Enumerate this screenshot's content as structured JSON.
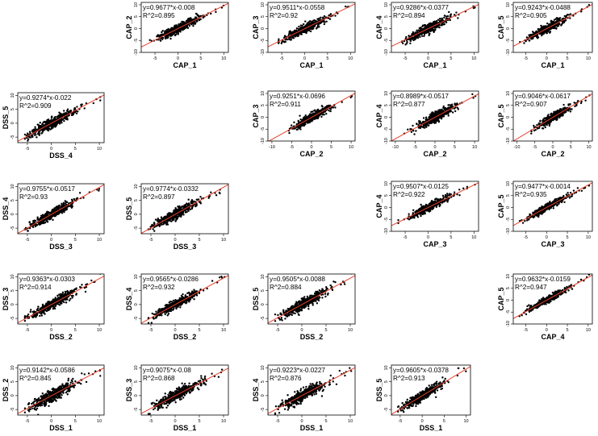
{
  "figure": {
    "description_free": true,
    "x_ticks": [
      -5,
      0,
      5,
      10
    ],
    "y_ticks": [
      -5,
      0,
      5,
      10
    ],
    "point_color": "#000000",
    "fit_color": "#e8402c"
  },
  "chart_data": [
    {
      "id": "p1",
      "type": "scatter",
      "xlabel": "CAP_1",
      "ylabel": "CAP_2",
      "equation": "y=0.9677*x-0.008",
      "r2_label": "R^2=0.895",
      "slope": 0.9677,
      "intercept": -0.008,
      "r2": 0.895,
      "xlim": [
        -8,
        11
      ],
      "ylim": [
        -10,
        11
      ],
      "xticks": [
        -5,
        0,
        5,
        10
      ],
      "yticks": [
        -10,
        -5,
        0,
        5,
        10
      ],
      "spread": 0.9
    },
    {
      "id": "p2",
      "type": "scatter",
      "xlabel": "CAP_1",
      "ylabel": "CAP_3",
      "equation": "y=0.9511*x-0.0558",
      "r2_label": "R^2=0.92",
      "slope": 0.9511,
      "intercept": -0.0558,
      "r2": 0.92,
      "xlim": [
        -8,
        11
      ],
      "ylim": [
        -10,
        11
      ],
      "xticks": [
        -5,
        0,
        5,
        10
      ],
      "yticks": [
        -10,
        -5,
        0,
        5,
        10
      ],
      "spread": 0.8
    },
    {
      "id": "p3",
      "type": "scatter",
      "xlabel": "CAP_1",
      "ylabel": "CAP_4",
      "equation": "y=0.9286*x-0.0377",
      "r2_label": "R^2=0.894",
      "slope": 0.9286,
      "intercept": -0.0377,
      "r2": 0.894,
      "xlim": [
        -8,
        11
      ],
      "ylim": [
        -10,
        11
      ],
      "xticks": [
        -5,
        0,
        5,
        10
      ],
      "yticks": [
        -10,
        -5,
        0,
        5,
        10
      ],
      "spread": 0.9
    },
    {
      "id": "p4",
      "type": "scatter",
      "xlabel": "CAP_1",
      "ylabel": "CAP_5",
      "equation": "y=0.9243*x-0.0488",
      "r2_label": "R^2=0.905",
      "slope": 0.9243,
      "intercept": -0.0488,
      "r2": 0.905,
      "xlim": [
        -8,
        11
      ],
      "ylim": [
        -10,
        11
      ],
      "xticks": [
        -5,
        0,
        5,
        10
      ],
      "yticks": [
        -10,
        -5,
        0,
        5,
        10
      ],
      "spread": 0.85
    },
    {
      "id": "p5",
      "type": "scatter",
      "xlabel": "DSS_4",
      "ylabel": "DSS_5",
      "equation": "y=0.9274*x-0.022",
      "r2_label": "R^2=0.909",
      "slope": 0.9274,
      "intercept": -0.022,
      "r2": 0.909,
      "xlim": [
        -7,
        11
      ],
      "ylim": [
        -7,
        11
      ],
      "xticks": [
        -5,
        0,
        5,
        10
      ],
      "yticks": [
        -5,
        0,
        5,
        10
      ],
      "spread": 0.85
    },
    {
      "id": "p6",
      "type": "scatter",
      "xlabel": "CAP_2",
      "ylabel": "CAP_3",
      "equation": "y=0.9251*x-0.0696",
      "r2_label": "R^2=0.911",
      "slope": 0.9251,
      "intercept": -0.0696,
      "r2": 0.911,
      "xlim": [
        -11,
        11
      ],
      "ylim": [
        -10,
        11
      ],
      "xticks": [
        -10,
        -5,
        0,
        5,
        10
      ],
      "yticks": [
        -10,
        -5,
        0,
        5,
        10
      ],
      "spread": 0.85
    },
    {
      "id": "p7",
      "type": "scatter",
      "xlabel": "CAP_2",
      "ylabel": "CAP_4",
      "equation": "y=0.8989*x-0.0517",
      "r2_label": "R^2=0.877",
      "slope": 0.8989,
      "intercept": -0.0517,
      "r2": 0.877,
      "xlim": [
        -11,
        11
      ],
      "ylim": [
        -10,
        11
      ],
      "xticks": [
        -10,
        -5,
        0,
        5,
        10
      ],
      "yticks": [
        -10,
        -5,
        0,
        5,
        10
      ],
      "spread": 1.0
    },
    {
      "id": "p8",
      "type": "scatter",
      "xlabel": "CAP_2",
      "ylabel": "CAP_5",
      "equation": "y=0.9046*x-0.0617",
      "r2_label": "R^2=0.907",
      "slope": 0.9046,
      "intercept": -0.0617,
      "r2": 0.907,
      "xlim": [
        -11,
        11
      ],
      "ylim": [
        -10,
        11
      ],
      "xticks": [
        -10,
        -5,
        0,
        5,
        10
      ],
      "yticks": [
        -10,
        -5,
        0,
        5,
        10
      ],
      "spread": 0.85
    },
    {
      "id": "p9",
      "type": "scatter",
      "xlabel": "DSS_3",
      "ylabel": "DSS_4",
      "equation": "y=0.9755*x-0.0517",
      "r2_label": "R^2=0.93",
      "slope": 0.9755,
      "intercept": -0.0517,
      "r2": 0.93,
      "xlim": [
        -7,
        11
      ],
      "ylim": [
        -7,
        11
      ],
      "xticks": [
        -5,
        0,
        5,
        10
      ],
      "yticks": [
        -5,
        0,
        5,
        10
      ],
      "spread": 0.75
    },
    {
      "id": "p10",
      "type": "scatter",
      "xlabel": "DSS_3",
      "ylabel": "DSS_5",
      "equation": "y=0.9774*x-0.0332",
      "r2_label": "R^2=0.897",
      "slope": 0.9774,
      "intercept": -0.0332,
      "r2": 0.897,
      "xlim": [
        -7,
        11
      ],
      "ylim": [
        -7,
        11
      ],
      "xticks": [
        -5,
        0,
        5,
        10
      ],
      "yticks": [
        -5,
        0,
        5,
        10
      ],
      "spread": 0.9
    },
    {
      "id": "p11",
      "type": "scatter",
      "xlabel": "CAP_3",
      "ylabel": "CAP_4",
      "equation": "y=0.9507*x-0.0125",
      "r2_label": "R^2=0.922",
      "slope": 0.9507,
      "intercept": -0.0125,
      "r2": 0.922,
      "xlim": [
        -8,
        11
      ],
      "ylim": [
        -10,
        11
      ],
      "xticks": [
        -5,
        0,
        5,
        10
      ],
      "yticks": [
        -10,
        -5,
        0,
        5,
        10
      ],
      "spread": 0.8
    },
    {
      "id": "p12",
      "type": "scatter",
      "xlabel": "CAP_3",
      "ylabel": "CAP_5",
      "equation": "y=0.9477*x-0.0014",
      "r2_label": "R^2=0.935",
      "slope": 0.9477,
      "intercept": -0.0014,
      "r2": 0.935,
      "xlim": [
        -8,
        11
      ],
      "ylim": [
        -10,
        11
      ],
      "xticks": [
        -5,
        0,
        5,
        10
      ],
      "yticks": [
        -10,
        -5,
        0,
        5,
        10
      ],
      "spread": 0.7
    },
    {
      "id": "p13",
      "type": "scatter",
      "xlabel": "DSS_2",
      "ylabel": "DSS_3",
      "equation": "y=0.9363*x-0.0303",
      "r2_label": "R^2=0.914",
      "slope": 0.9363,
      "intercept": -0.0303,
      "r2": 0.914,
      "xlim": [
        -7,
        11
      ],
      "ylim": [
        -7,
        11
      ],
      "xticks": [
        -5,
        0,
        5,
        10
      ],
      "yticks": [
        -5,
        0,
        5,
        10
      ],
      "spread": 0.85
    },
    {
      "id": "p14",
      "type": "scatter",
      "xlabel": "DSS_2",
      "ylabel": "DSS_4",
      "equation": "y=0.9565*x-0.0286",
      "r2_label": "R^2=0.932",
      "slope": 0.9565,
      "intercept": -0.0286,
      "r2": 0.932,
      "xlim": [
        -7,
        11
      ],
      "ylim": [
        -7,
        11
      ],
      "xticks": [
        -5,
        0,
        5,
        10
      ],
      "yticks": [
        -5,
        0,
        5,
        10
      ],
      "spread": 0.75
    },
    {
      "id": "p15",
      "type": "scatter",
      "xlabel": "DSS_2",
      "ylabel": "DSS_5",
      "equation": "y=0.9505*x-0.0088",
      "r2_label": "R^2=0.884",
      "slope": 0.9505,
      "intercept": -0.0088,
      "r2": 0.884,
      "xlim": [
        -7,
        11
      ],
      "ylim": [
        -7,
        11
      ],
      "xticks": [
        -5,
        0,
        5,
        10
      ],
      "yticks": [
        -5,
        0,
        5,
        10
      ],
      "spread": 0.95
    },
    {
      "id": "p16",
      "type": "scatter",
      "xlabel": "CAP_4",
      "ylabel": "CAP_5",
      "equation": "y=0.9632*x-0.0159",
      "r2_label": "R^2=0.947",
      "slope": 0.9632,
      "intercept": -0.0159,
      "r2": 0.947,
      "xlim": [
        -8,
        11
      ],
      "ylim": [
        -10,
        11
      ],
      "xticks": [
        -5,
        0,
        5,
        10
      ],
      "yticks": [
        -10,
        -5,
        0,
        5,
        10
      ],
      "spread": 0.65
    },
    {
      "id": "p17",
      "type": "scatter",
      "xlabel": "DSS_1",
      "ylabel": "DSS_2",
      "equation": "y=0.9142*x-0.0586",
      "r2_label": "R^2=0.845",
      "slope": 0.9142,
      "intercept": -0.0586,
      "r2": 0.845,
      "xlim": [
        -7,
        11
      ],
      "ylim": [
        -7,
        11
      ],
      "xticks": [
        -5,
        0,
        5,
        10
      ],
      "yticks": [
        -5,
        0,
        5,
        10
      ],
      "spread": 1.1
    },
    {
      "id": "p18",
      "type": "scatter",
      "xlabel": "DSS_1",
      "ylabel": "DSS_3",
      "equation": "y=0.9075*x-0.08",
      "r2_label": "R^2=0.868",
      "slope": 0.9075,
      "intercept": -0.08,
      "r2": 0.868,
      "xlim": [
        -7,
        11
      ],
      "ylim": [
        -7,
        11
      ],
      "xticks": [
        -5,
        0,
        5,
        10
      ],
      "yticks": [
        -5,
        0,
        5,
        10
      ],
      "spread": 1.0
    },
    {
      "id": "p19",
      "type": "scatter",
      "xlabel": "DSS_1",
      "ylabel": "DSS_4",
      "equation": "y=0.9223*x-0.0227",
      "r2_label": "R^2=0.876",
      "slope": 0.9223,
      "intercept": -0.0227,
      "r2": 0.876,
      "xlim": [
        -7,
        11
      ],
      "ylim": [
        -7,
        11
      ],
      "xticks": [
        -5,
        0,
        5,
        10
      ],
      "yticks": [
        -5,
        0,
        5,
        10
      ],
      "spread": 1.0
    },
    {
      "id": "p20",
      "type": "scatter",
      "xlabel": "DSS_1",
      "ylabel": "DSS_5",
      "equation": "y=0.9605*x-0.0378",
      "r2_label": "R^2=0.913",
      "slope": 0.9605,
      "intercept": -0.0378,
      "r2": 0.913,
      "xlim": [
        -7,
        11
      ],
      "ylim": [
        -7,
        11
      ],
      "xticks": [
        -5,
        0,
        5,
        10
      ],
      "yticks": [
        -5,
        0,
        5,
        10
      ],
      "spread": 0.85
    }
  ]
}
